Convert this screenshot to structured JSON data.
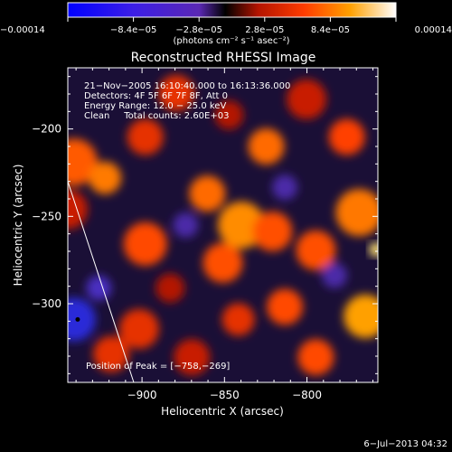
{
  "chart_data": {
    "type": "heatmap",
    "title": "Reconstructed RHESSI Image",
    "xlabel": "Heliocentric X (arcsec)",
    "ylabel": "Heliocentric Y (arcsec)",
    "xlim": [
      -945,
      -757
    ],
    "ylim": [
      -345,
      -165
    ],
    "x_ticks": [
      {
        "value": -900,
        "label": "−900"
      },
      {
        "value": -850,
        "label": "−850"
      },
      {
        "value": -800,
        "label": "−800"
      }
    ],
    "y_ticks": [
      {
        "value": -200,
        "label": "−200"
      },
      {
        "value": -250,
        "label": "−250"
      },
      {
        "value": -300,
        "label": "−300"
      }
    ],
    "colorbar": {
      "min": -0.00014,
      "max": 0.00014,
      "ticks": [
        {
          "value": -0.00014,
          "label": "−0.00014"
        },
        {
          "value": -8.4e-05,
          "label": "−8.4e−05"
        },
        {
          "value": -2.8e-05,
          "label": "−2.8e−05"
        },
        {
          "value": 2.8e-05,
          "label": "2.8e−05"
        },
        {
          "value": 8.4e-05,
          "label": "8.4e−05"
        },
        {
          "value": 0.00014,
          "label": "0.00014"
        }
      ],
      "unit_label": "(photons cm⁻² s⁻¹ asec⁻²)"
    },
    "annotations": [
      "21−Nov−2005 16:10:40.000 to 16:13:36.000",
      "Detectors: 4F 5F 6F 7F 8F, Att 0",
      "Energy Range: 12.0 − 25.0 keV",
      "Clean     Total counts: 2.60E+03"
    ],
    "peak_label": "Position of Peak = [−758,−269]",
    "peak": {
      "x": -758,
      "y": -269
    },
    "limb_line": [
      {
        "x": -945,
        "y": -230
      },
      {
        "x": -905,
        "y": -345
      }
    ],
    "min_marker": {
      "x": -939,
      "y": -309
    },
    "grid": false
  },
  "footer": {
    "timestamp": "6−Jul−2013 04:32"
  }
}
